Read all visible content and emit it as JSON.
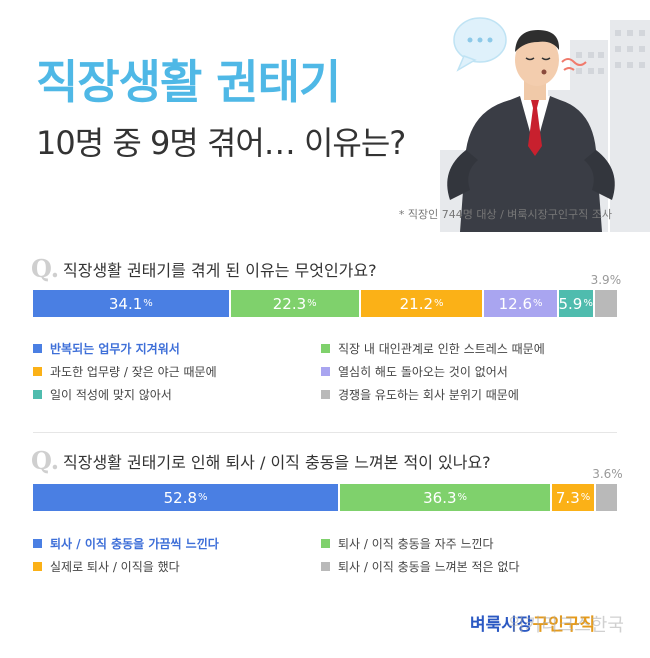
{
  "header": {
    "title": "직장생활 권태기",
    "subtitle": "10명 중 9명 겪어… 이유는?",
    "source": "* 직장인 744명 대상 / 벼룩시장구인구직 조사"
  },
  "q_mark": "Q.",
  "pct_unit": "%",
  "chart_data": [
    {
      "type": "bar",
      "stacked": true,
      "question": "직장생활 권태기를 겪게 된 이유는 무엇인가요?",
      "categories": [
        "반복되는 업무가 지겨워서",
        "직장 내 대인관계로 인한 스트레스 때문에",
        "과도한 업무량 / 잦은 야근 때문에",
        "열심히 해도 돌아오는 것이 없어서",
        "일이 적성에 맞지 않아서",
        "경쟁을 유도하는 회사 분위기 때문에"
      ],
      "values": [
        34.1,
        22.3,
        21.2,
        12.6,
        5.9,
        3.9
      ],
      "colors": [
        "#4a7fe3",
        "#7fd16c",
        "#fbb117",
        "#a9a5f0",
        "#4fbcae",
        "#b9b9b9"
      ],
      "highlight_index": 0,
      "ylim": [
        0,
        100
      ]
    },
    {
      "type": "bar",
      "stacked": true,
      "question": "직장생활 권태기로 인해 퇴사 / 이직 충동을 느껴본 적이 있나요?",
      "categories": [
        "퇴사 / 이직 충동을 가끔씩 느낀다",
        "퇴사 / 이직 충동을 자주 느낀다",
        "실제로 퇴사 / 이직을 했다",
        "퇴사 / 이직 충동을 느껴본 적은 없다"
      ],
      "values": [
        52.8,
        36.3,
        7.3,
        3.6
      ],
      "colors": [
        "#4a7fe3",
        "#7fd16c",
        "#fbb117",
        "#b9b9b9"
      ],
      "highlight_index": 0,
      "ylim": [
        0,
        100
      ]
    }
  ],
  "logo": {
    "part1": "벼룩시장",
    "part2": "구인구직"
  },
  "watermark": "위키리크스한국"
}
